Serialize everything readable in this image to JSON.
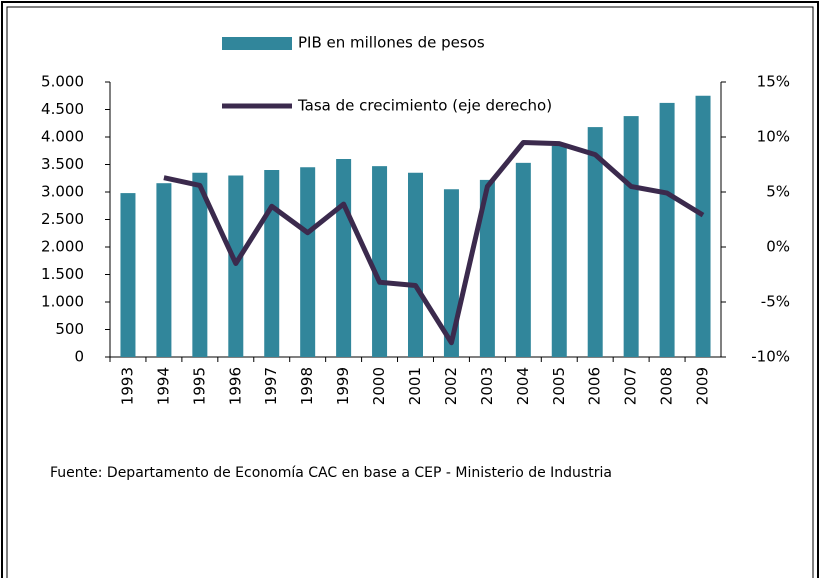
{
  "chart_data": {
    "type": "bar-line",
    "categories": [
      "1993",
      "1994",
      "1995",
      "1996",
      "1997",
      "1998",
      "1999",
      "2000",
      "2001",
      "2002",
      "2003",
      "2004",
      "2005",
      "2006",
      "2007",
      "2008",
      "2009"
    ],
    "series": [
      {
        "name": "PIB en millones de pesos",
        "type": "bar",
        "color": "#31869b",
        "values": [
          2980,
          3160,
          3350,
          3300,
          3400,
          3450,
          3600,
          3470,
          3350,
          3050,
          3220,
          3530,
          3840,
          4180,
          4380,
          4620,
          4750
        ]
      },
      {
        "name": "Tasa de crecimiento (eje derecho)",
        "type": "line",
        "axis": "y2",
        "color": "#3b2a4d",
        "values": [
          null,
          6.3,
          5.6,
          -1.5,
          3.7,
          1.3,
          3.9,
          -3.2,
          -3.5,
          -8.7,
          5.5,
          9.5,
          9.4,
          8.4,
          5.5,
          4.9,
          2.9
        ]
      }
    ],
    "ylim": [
      0,
      5000
    ],
    "yticks": [
      0,
      500,
      {
        "value": 1000,
        "label": "1.000"
      },
      {
        "value": 1500,
        "label": "1.500"
      },
      {
        "value": 2000,
        "label": "2.000"
      },
      {
        "value": 2500,
        "label": "2.500"
      },
      {
        "value": 3000,
        "label": "3.000"
      },
      {
        "value": 3500,
        "label": "3.500"
      },
      {
        "value": 4000,
        "label": "4.000"
      },
      {
        "value": 4500,
        "label": "4.500"
      },
      {
        "value": 5000,
        "label": "5.000"
      }
    ],
    "y2lim": [
      -10,
      15
    ],
    "y2ticks": [
      {
        "value": -10,
        "label": "-10%"
      },
      {
        "value": -5,
        "label": "-5%"
      },
      {
        "value": 0,
        "label": "0%"
      },
      {
        "value": 5,
        "label": "5%"
      },
      {
        "value": 10,
        "label": "10%"
      },
      {
        "value": 15,
        "label": "15%"
      }
    ],
    "grid": false,
    "legend": "top",
    "source": "Fuente: Departamento de Economía CAC en base a CEP - Ministerio de Industria"
  }
}
